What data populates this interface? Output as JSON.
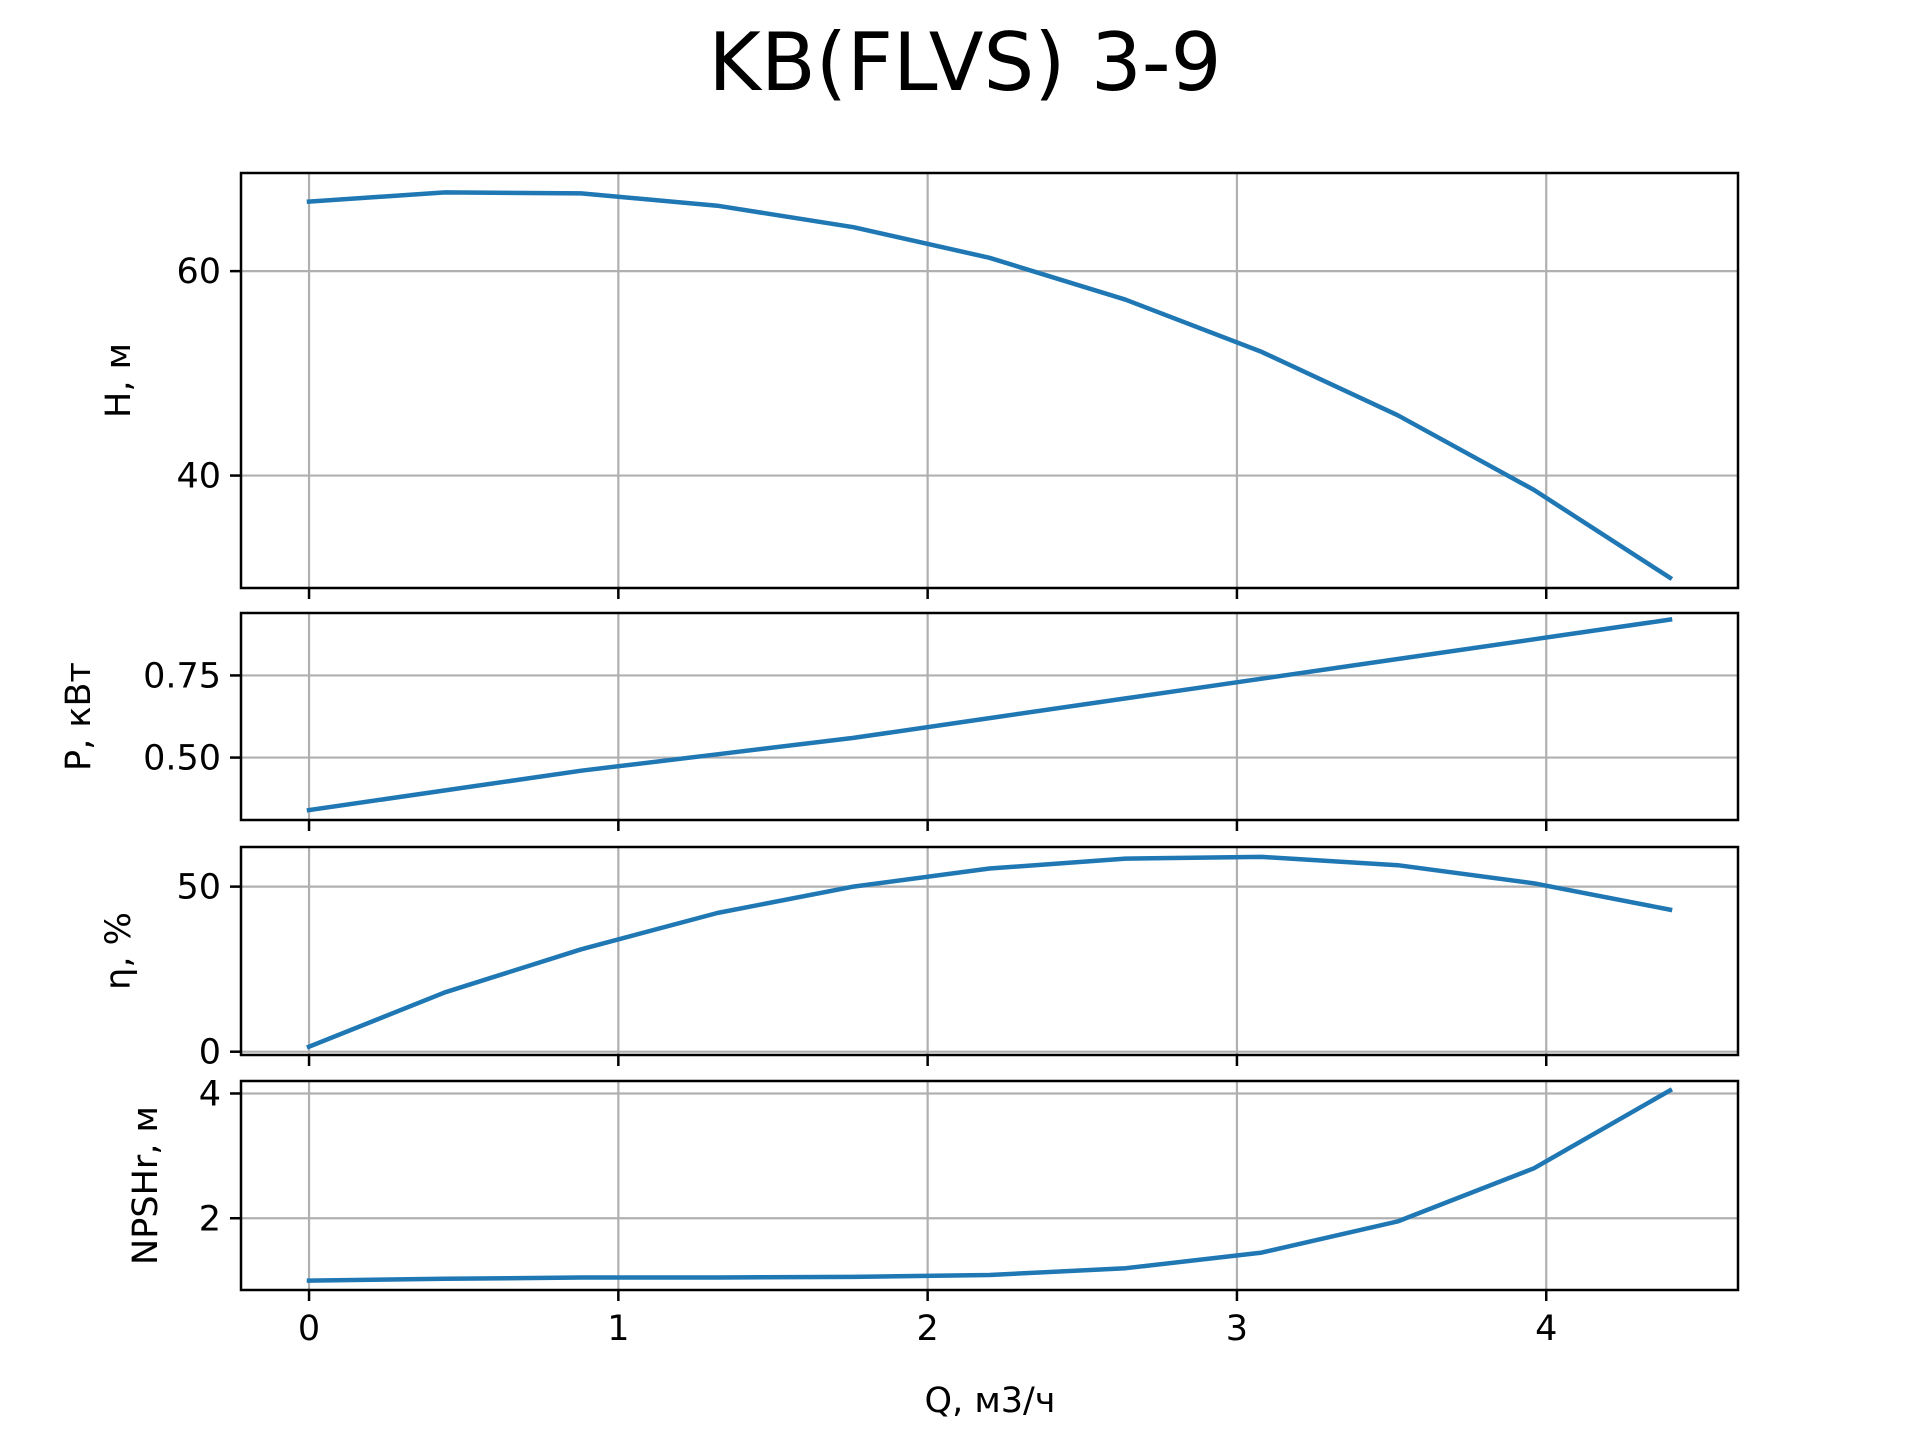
{
  "chart_data": {
    "type": "line",
    "title": "KB(FLVS) 3-9",
    "xlabel": "Q, м3/ч",
    "xlim": [
      -0.22,
      4.62
    ],
    "xticks": [
      0,
      1,
      2,
      3,
      4
    ],
    "grid": true,
    "line_color": "#1f77b4",
    "subplots": [
      {
        "ylabel": "H, м",
        "ylim": [
          29.0,
          69.6
        ],
        "yticks": [
          40,
          60
        ],
        "x": [
          0,
          0.44,
          0.88,
          1.32,
          1.76,
          2.2,
          2.64,
          3.08,
          3.52,
          3.96,
          4.4
        ],
        "y": [
          66.8,
          67.7,
          67.6,
          66.4,
          64.3,
          61.3,
          57.2,
          52.1,
          45.9,
          38.6,
          30.0
        ]
      },
      {
        "ylabel": "P, кВт",
        "ylim": [
          0.31,
          0.94
        ],
        "yticks": [
          0.5,
          0.75
        ],
        "x": [
          0,
          0.44,
          0.88,
          1.32,
          1.76,
          2.2,
          2.64,
          3.08,
          3.52,
          3.96,
          4.4
        ],
        "y": [
          0.34,
          0.4,
          0.46,
          0.51,
          0.56,
          0.62,
          0.68,
          0.74,
          0.8,
          0.86,
          0.92
        ]
      },
      {
        "ylabel": "η, %",
        "ylim": [
          -1,
          62
        ],
        "yticks": [
          0,
          50
        ],
        "x": [
          0,
          0.44,
          0.88,
          1.32,
          1.76,
          2.2,
          2.64,
          3.08,
          3.52,
          3.96,
          4.4
        ],
        "y": [
          1.5,
          18,
          31,
          42,
          50,
          55.5,
          58.5,
          59,
          56.5,
          51,
          43
        ]
      },
      {
        "ylabel": "NPSHr, м",
        "ylim": [
          0.85,
          4.2
        ],
        "yticks": [
          2,
          4
        ],
        "x": [
          0,
          0.44,
          0.88,
          1.32,
          1.76,
          2.2,
          2.64,
          3.08,
          3.52,
          3.96,
          4.4
        ],
        "y": [
          1.0,
          1.03,
          1.05,
          1.05,
          1.06,
          1.09,
          1.2,
          1.45,
          1.95,
          2.8,
          4.05
        ]
      }
    ]
  }
}
